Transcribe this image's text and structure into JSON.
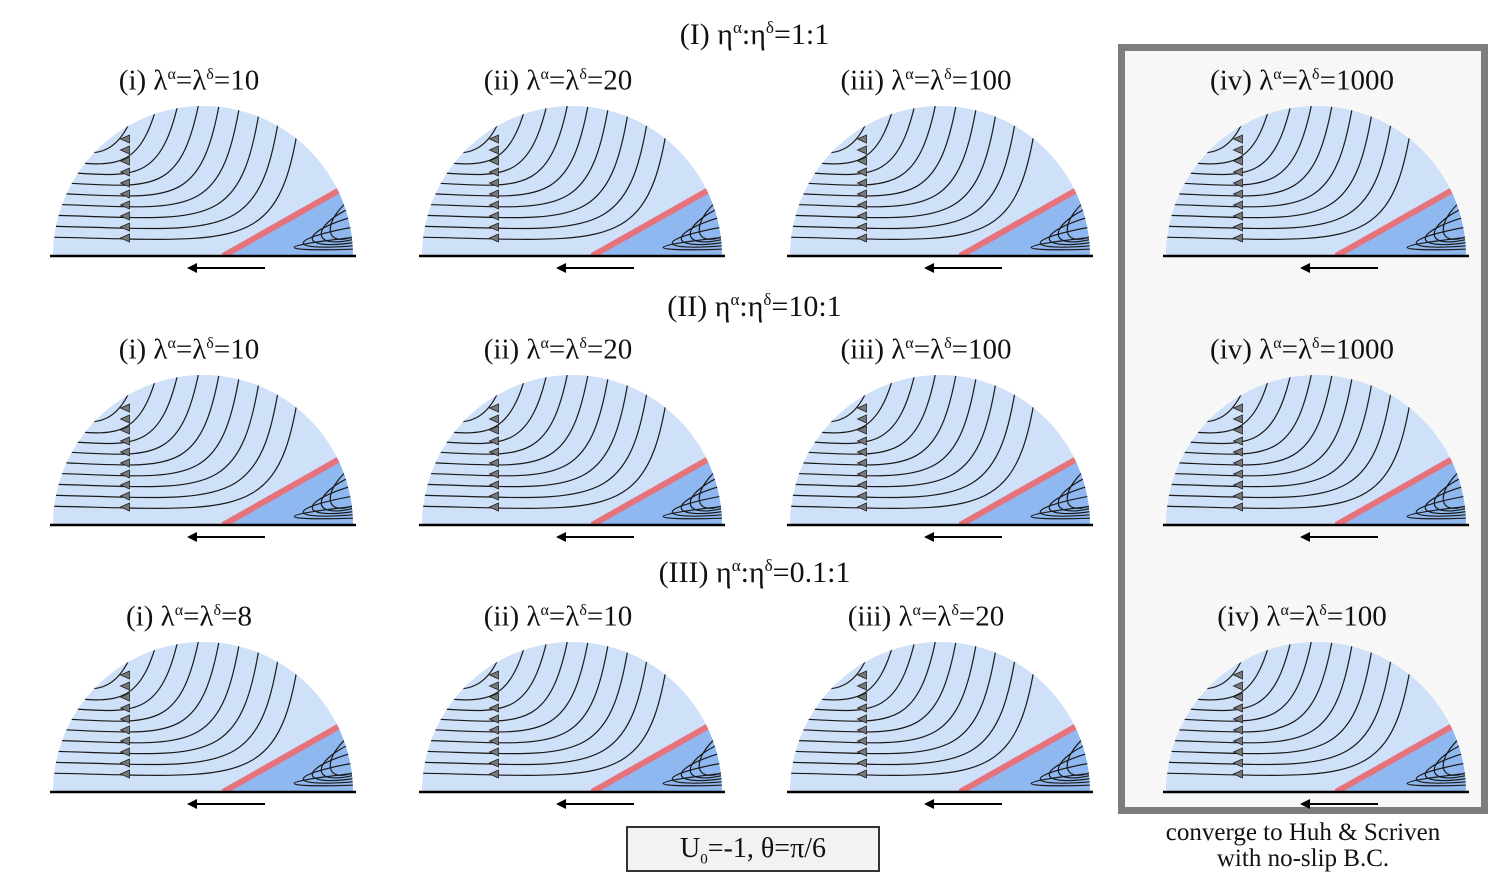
{
  "rows": [
    {
      "id": "I",
      "title_prefix": "(I) η",
      "sup1": "α",
      "mid": ":η",
      "sup2": "δ",
      "title_suffix": "=1:1",
      "panels": [
        {
          "tag": "(i)",
          "value": "=10"
        },
        {
          "tag": "(ii)",
          "value": "=20"
        },
        {
          "tag": "(iii)",
          "value": "=100"
        },
        {
          "tag": "(iv)",
          "value": "=1000"
        }
      ]
    },
    {
      "id": "II",
      "title_prefix": "(II) η",
      "sup1": "α",
      "mid": ":η",
      "sup2": "δ",
      "title_suffix": "=10:1",
      "panels": [
        {
          "tag": "(i)",
          "value": "=10"
        },
        {
          "tag": "(ii)",
          "value": "=20"
        },
        {
          "tag": "(iii)",
          "value": "=100"
        },
        {
          "tag": "(iv)",
          "value": "=1000"
        }
      ]
    },
    {
      "id": "III",
      "title_prefix": "(III) η",
      "sup1": "α",
      "mid": ":η",
      "sup2": "δ",
      "title_suffix": "=0.1:1",
      "panels": [
        {
          "tag": "(i)",
          "value": "=8"
        },
        {
          "tag": "(ii)",
          "value": "=10"
        },
        {
          "tag": "(iii)",
          "value": "=20"
        },
        {
          "tag": "(iv)",
          "value": "=100"
        }
      ]
    }
  ],
  "lambda_symbol": "λ",
  "sup_alpha": "α",
  "sup_delta": "δ",
  "converge_note": {
    "line1": "converge to Huh & Scriven",
    "line2": "with no-slip B.C."
  },
  "params": {
    "u": "U",
    "u_sub": "0",
    "rest": "=-1, θ=π/6"
  },
  "colors": {
    "upper_phase": "#cfe0f9",
    "lower_phase": "#8fb8f0",
    "interface": "#e6737b",
    "streamline": "#1a1a1a",
    "wall": "#000000",
    "box_border": "#7d7d7d"
  }
}
